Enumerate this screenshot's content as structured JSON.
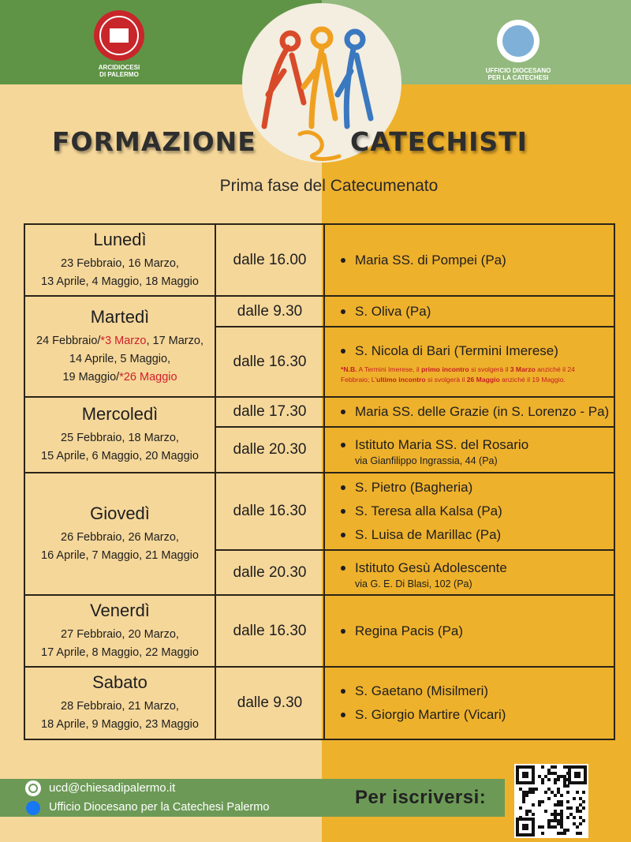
{
  "header": {
    "left_logo": [
      "ARCIDIOCESI",
      "DI PALERMO"
    ],
    "right_logo": [
      "UFFICIO DIOCESANO",
      "PER LA CATECHESI"
    ],
    "title_left": "FORMAZIONE",
    "title_right": "CATECHISTI",
    "subtitle": "Prima fase del Catecumenato"
  },
  "schedule": [
    {
      "day": "Lunedì",
      "dates": [
        [
          {
            "text": "23 Febbraio, 16 Marzo,"
          }
        ],
        [
          {
            "text": "13 Aprile, 4 Maggio, 18 Maggio"
          }
        ]
      ],
      "sessions": [
        {
          "time": "dalle 16.00",
          "places": [
            {
              "name": "Maria SS. di Pompei (Pa)"
            }
          ]
        }
      ]
    },
    {
      "day": "Martedì",
      "dates": [
        [
          {
            "text": "24 Febbraio/"
          },
          {
            "text": "*3 Marzo",
            "color": "#d0202a"
          },
          {
            "text": ", 17 Marzo,"
          }
        ],
        [
          {
            "text": "14 Aprile, 5 Maggio,"
          }
        ],
        [
          {
            "text": "19 Maggio/"
          },
          {
            "text": "*26 Maggio",
            "color": "#d0202a"
          }
        ]
      ],
      "sessions": [
        {
          "time": "dalle 9.30",
          "places": [
            {
              "name": "S. Oliva (Pa)"
            }
          ]
        },
        {
          "time": "dalle 16.30",
          "places": [
            {
              "name": "S. Nicola di Bari (Termini Imerese)"
            }
          ],
          "note": [
            {
              "text": "*N.B.",
              "bold": true
            },
            {
              "text": " A Termini Imerese, il "
            },
            {
              "text": "primo incontro",
              "bold": true
            },
            {
              "text": " si svolgerà il "
            },
            {
              "text": "3 Marzo",
              "bold": true
            },
            {
              "text": " anziché il 24 Febbraio; L'"
            },
            {
              "text": "ultimo incontro",
              "bold": true
            },
            {
              "text": " si svolgerà il "
            },
            {
              "text": "26 Maggio",
              "bold": true
            },
            {
              "text": " anziché il 19 Maggio."
            }
          ]
        }
      ]
    },
    {
      "day": "Mercoledì",
      "dates": [
        [
          {
            "text": "25 Febbraio, 18 Marzo,"
          }
        ],
        [
          {
            "text": "15 Aprile, 6 Maggio, 20 Maggio"
          }
        ]
      ],
      "sessions": [
        {
          "time": "dalle 17.30",
          "places": [
            {
              "name": "Maria SS. delle Grazie (in S. Lorenzo - Pa)"
            }
          ]
        },
        {
          "time": "dalle 20.30",
          "places": [
            {
              "name": "Istituto Maria SS. del Rosario",
              "address": "via Gianfilippo Ingrassia, 44 (Pa)"
            }
          ]
        }
      ]
    },
    {
      "day": "Giovedì",
      "dates": [
        [
          {
            "text": "26 Febbraio, 26 Marzo,"
          }
        ],
        [
          {
            "text": "16 Aprile, 7 Maggio, 21 Maggio"
          }
        ]
      ],
      "sessions": [
        {
          "time": "dalle 16.30",
          "places": [
            {
              "name": "S. Pietro (Bagheria)"
            },
            {
              "name": "S. Teresa alla Kalsa (Pa)"
            },
            {
              "name": "S. Luisa de Marillac (Pa)"
            }
          ]
        },
        {
          "time": "dalle 20.30",
          "places": [
            {
              "name": "Istituto Gesù Adolescente",
              "address": "via G. E. Di Blasi, 102 (Pa)"
            }
          ]
        }
      ]
    },
    {
      "day": "Venerdì",
      "dates": [
        [
          {
            "text": "27 Febbraio, 20 Marzo,"
          }
        ],
        [
          {
            "text": "17 Aprile, 8 Maggio, 22 Maggio"
          }
        ]
      ],
      "sessions": [
        {
          "time": "dalle 16.30",
          "places": [
            {
              "name": "Regina Pacis (Pa)"
            }
          ]
        }
      ]
    },
    {
      "day": "Sabato",
      "dates": [
        [
          {
            "text": "28 Febbraio, 21 Marzo,"
          }
        ],
        [
          {
            "text": "18 Aprile, 9 Maggio, 23 Maggio"
          }
        ]
      ],
      "sessions": [
        {
          "time": "dalle 9.30",
          "places": [
            {
              "name": "S. Gaetano (Misilmeri)"
            },
            {
              "name": "S. Giorgio Martire (Vicari)"
            }
          ]
        }
      ]
    }
  ],
  "footer": {
    "email": "ucd@chiesadipalermo.it",
    "facebook": "Ufficio Diocesano per la Catechesi Palermo",
    "cta": "Per iscriversi:"
  }
}
